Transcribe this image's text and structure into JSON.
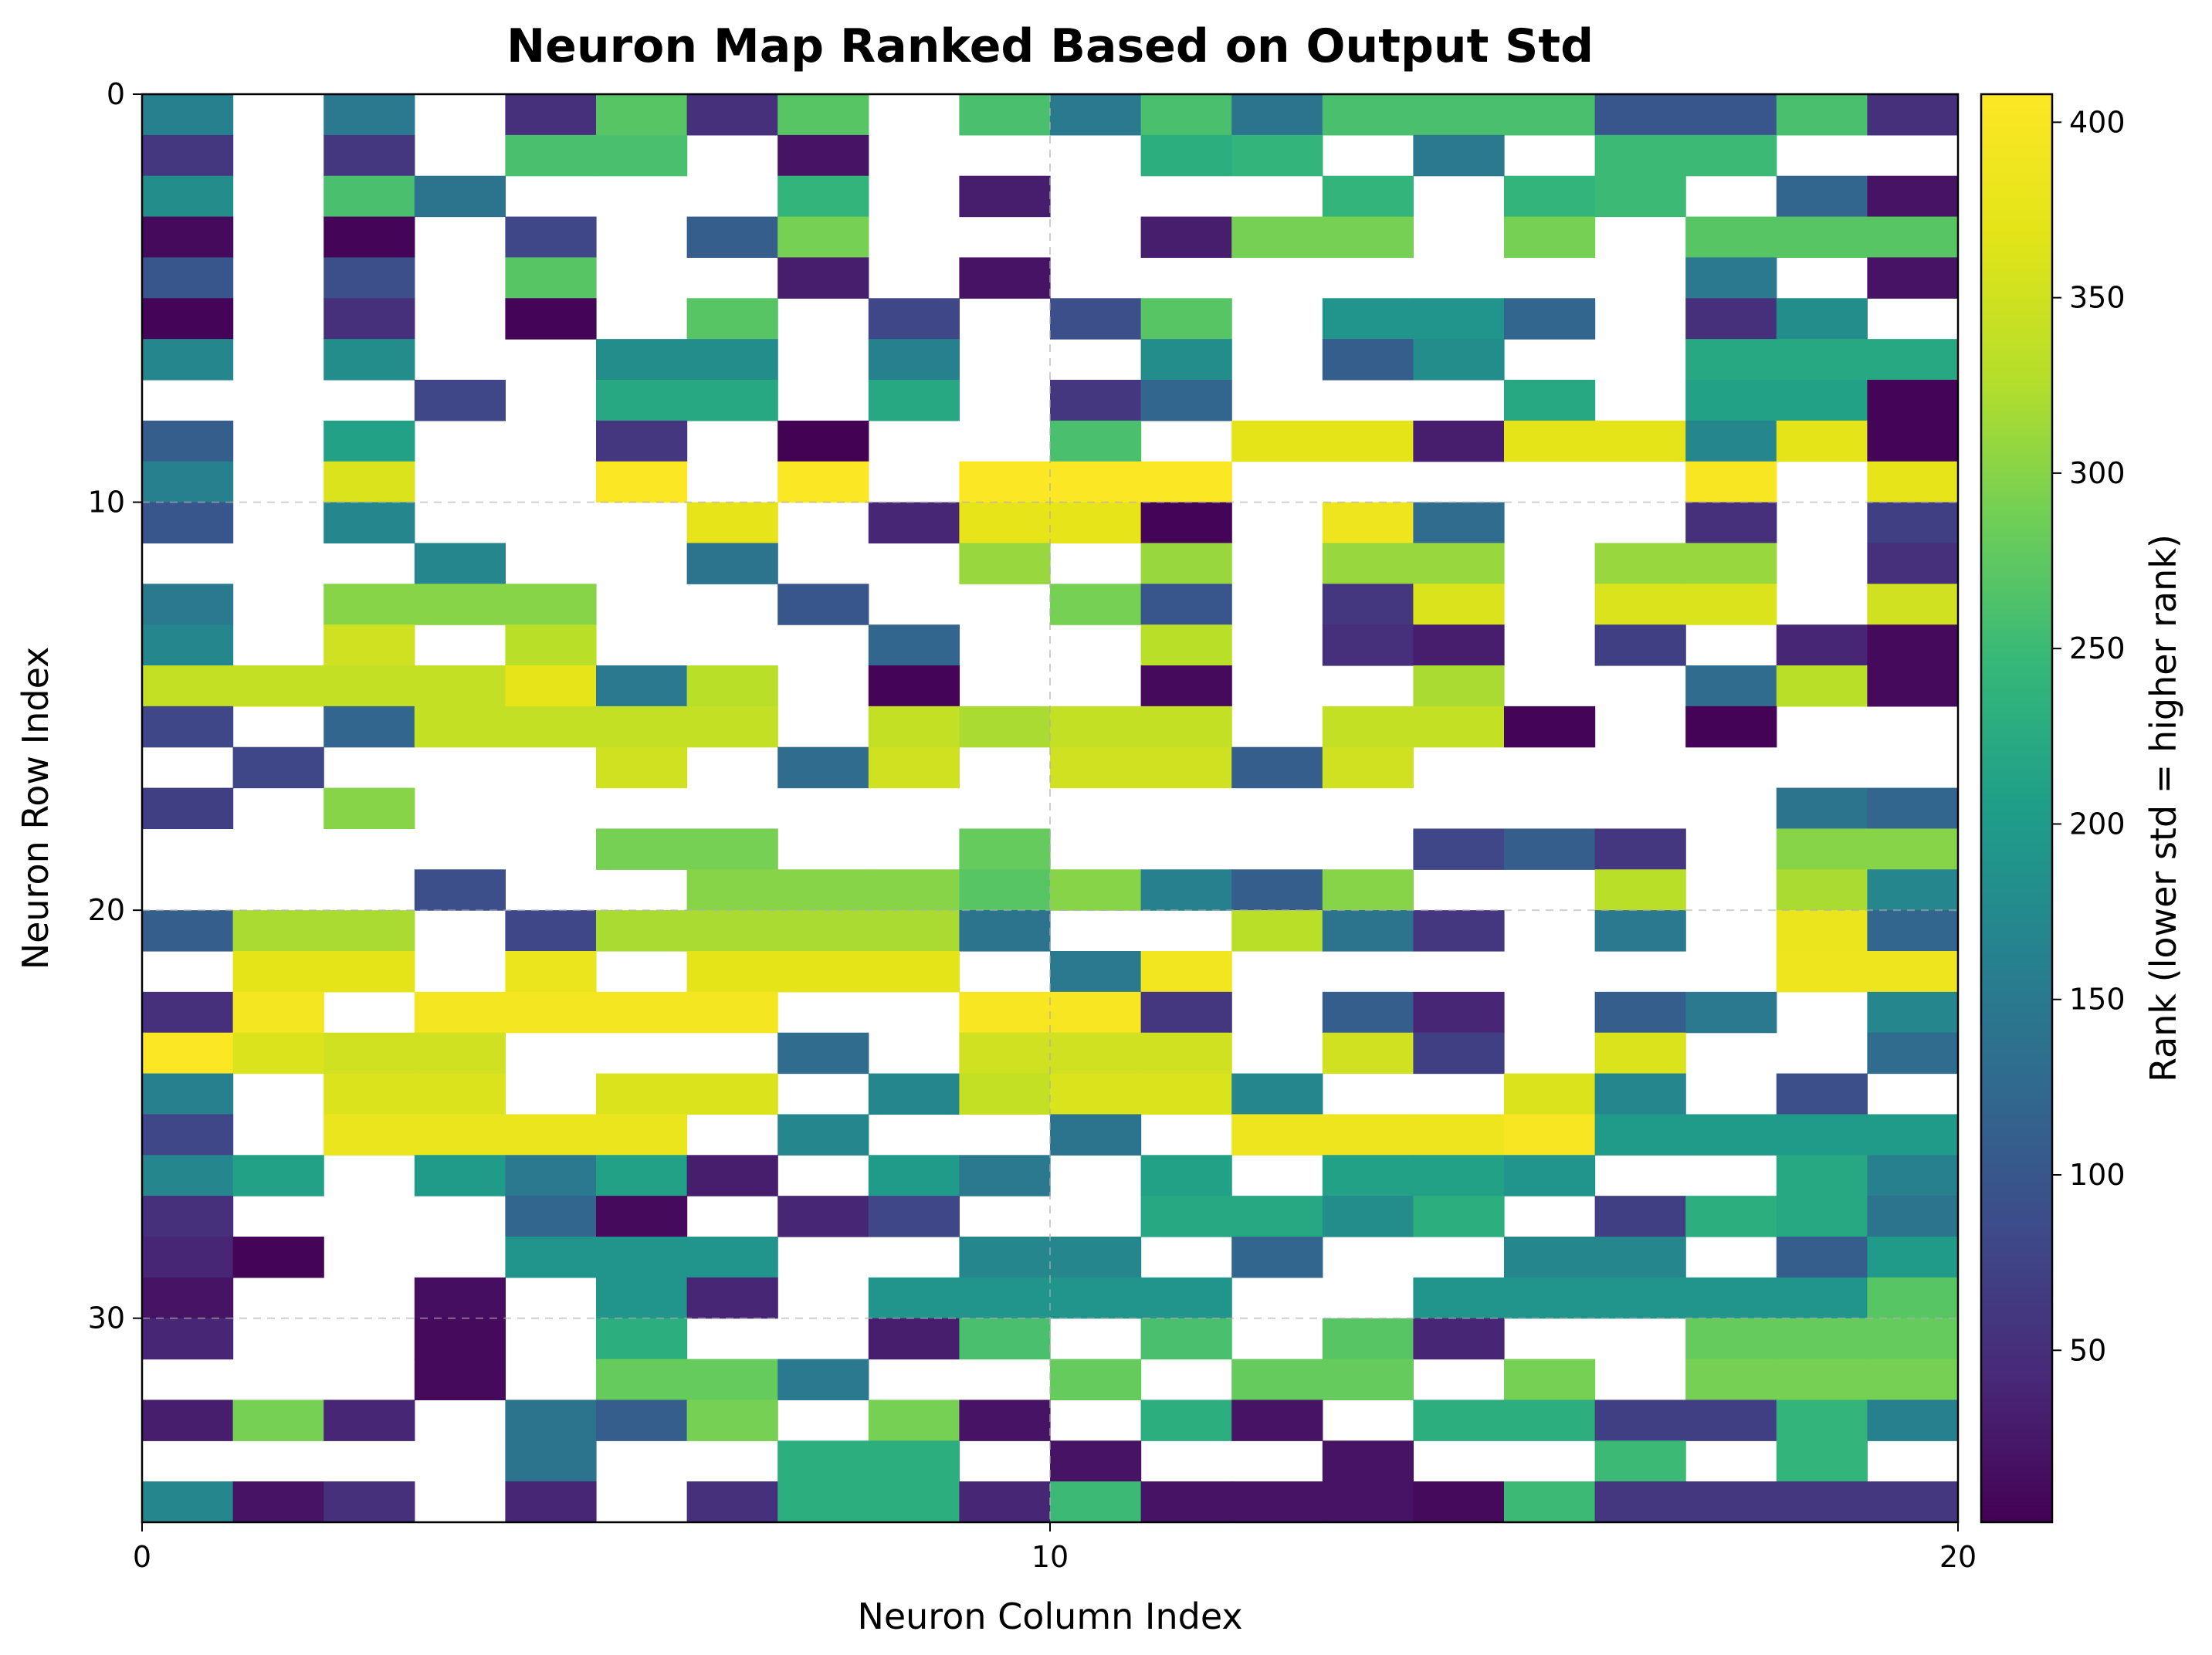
{
  "chart_data": {
    "type": "heatmap",
    "title": "Neuron Map Ranked Based on Output Std",
    "xlabel": "Neuron Column Index",
    "ylabel": "Neuron Row Index",
    "xlim": [
      0,
      20
    ],
    "ylim": [
      35,
      0
    ],
    "xticks": [
      0,
      10,
      20
    ],
    "yticks": [
      0,
      10,
      20,
      30
    ],
    "grid": true,
    "colormap": "viridis",
    "colorbar": {
      "label": "Rank (lower std = higher rank)",
      "min": 1,
      "max": 408,
      "ticks": [
        50,
        100,
        150,
        200,
        250,
        300,
        350,
        400
      ]
    },
    "n_rows": 35,
    "n_cols": 20,
    "rows": [
      [
        160,
        null,
        150,
        null,
        50,
        270,
        50,
        270,
        null,
        260,
        150,
        260,
        140,
        260,
        260,
        260,
        100,
        100,
        260,
        50
      ],
      [
        60,
        null,
        60,
        null,
        260,
        260,
        null,
        20,
        null,
        null,
        null,
        230,
        240,
        null,
        150,
        null,
        250,
        250,
        null,
        null
      ],
      [
        180,
        null,
        260,
        140,
        null,
        null,
        null,
        240,
        null,
        30,
        null,
        null,
        null,
        240,
        null,
        240,
        250,
        null,
        120,
        20
      ],
      [
        10,
        null,
        5,
        null,
        80,
        null,
        110,
        290,
        null,
        null,
        null,
        30,
        290,
        290,
        null,
        290,
        null,
        270,
        270,
        270
      ],
      [
        100,
        null,
        90,
        null,
        270,
        null,
        null,
        30,
        null,
        20,
        null,
        null,
        null,
        null,
        null,
        null,
        null,
        150,
        null,
        20
      ],
      [
        5,
        null,
        50,
        null,
        5,
        null,
        270,
        null,
        80,
        null,
        90,
        270,
        null,
        190,
        190,
        120,
        null,
        50,
        180,
        null
      ],
      [
        170,
        null,
        180,
        null,
        null,
        180,
        180,
        null,
        160,
        null,
        null,
        180,
        null,
        110,
        180,
        null,
        null,
        220,
        220,
        220
      ],
      [
        null,
        null,
        null,
        80,
        null,
        220,
        220,
        null,
        220,
        null,
        60,
        120,
        null,
        null,
        null,
        220,
        null,
        210,
        210,
        5
      ],
      [
        110,
        null,
        210,
        null,
        null,
        60,
        null,
        2,
        null,
        null,
        260,
        null,
        370,
        370,
        30,
        370,
        370,
        170,
        370,
        5
      ],
      [
        160,
        null,
        360,
        null,
        null,
        405,
        null,
        405,
        null,
        405,
        405,
        405,
        null,
        null,
        null,
        null,
        null,
        400,
        null,
        375
      ],
      [
        100,
        null,
        170,
        null,
        null,
        null,
        375,
        null,
        40,
        375,
        375,
        5,
        null,
        385,
        130,
        null,
        null,
        50,
        null,
        70
      ],
      [
        null,
        null,
        null,
        170,
        null,
        null,
        140,
        null,
        null,
        310,
        null,
        310,
        null,
        310,
        310,
        null,
        310,
        310,
        null,
        50
      ],
      [
        150,
        null,
        300,
        300,
        300,
        null,
        null,
        100,
        null,
        null,
        290,
        100,
        null,
        60,
        360,
        null,
        360,
        360,
        null,
        350
      ],
      [
        170,
        null,
        350,
        null,
        330,
        null,
        null,
        null,
        120,
        null,
        null,
        330,
        null,
        50,
        30,
        null,
        70,
        null,
        40,
        10
      ],
      [
        340,
        340,
        340,
        340,
        375,
        150,
        330,
        null,
        5,
        null,
        null,
        10,
        null,
        null,
        320,
        null,
        null,
        130,
        330,
        10
      ],
      [
        80,
        null,
        120,
        340,
        340,
        340,
        340,
        null,
        340,
        320,
        340,
        340,
        null,
        340,
        340,
        5,
        null,
        3,
        null,
        null
      ],
      [
        null,
        80,
        null,
        null,
        null,
        350,
        null,
        130,
        350,
        null,
        350,
        350,
        110,
        350,
        null,
        null,
        null,
        null,
        null,
        null
      ],
      [
        70,
        null,
        300,
        null,
        null,
        null,
        null,
        null,
        null,
        null,
        null,
        null,
        null,
        null,
        null,
        null,
        null,
        null,
        140,
        120
      ],
      [
        null,
        null,
        null,
        null,
        null,
        290,
        290,
        null,
        null,
        280,
        null,
        null,
        null,
        null,
        80,
        110,
        60,
        null,
        300,
        300
      ],
      [
        null,
        null,
        null,
        90,
        null,
        null,
        300,
        300,
        300,
        270,
        300,
        160,
        110,
        300,
        null,
        null,
        330,
        null,
        320,
        170
      ],
      [
        110,
        320,
        320,
        null,
        80,
        320,
        320,
        320,
        320,
        140,
        null,
        null,
        330,
        140,
        60,
        null,
        150,
        null,
        380,
        120
      ],
      [
        null,
        370,
        370,
        null,
        380,
        null,
        370,
        370,
        370,
        null,
        150,
        390,
        null,
        null,
        null,
        null,
        null,
        null,
        385,
        385
      ],
      [
        50,
        395,
        null,
        395,
        395,
        395,
        395,
        null,
        null,
        400,
        400,
        60,
        null,
        110,
        40,
        null,
        110,
        150,
        null,
        170
      ],
      [
        405,
        360,
        350,
        350,
        null,
        null,
        null,
        130,
        null,
        350,
        350,
        350,
        null,
        350,
        70,
        null,
        360,
        null,
        null,
        130
      ],
      [
        160,
        null,
        360,
        360,
        null,
        360,
        360,
        null,
        170,
        340,
        360,
        360,
        170,
        null,
        null,
        360,
        170,
        null,
        90,
        null
      ],
      [
        80,
        null,
        380,
        380,
        380,
        380,
        null,
        170,
        null,
        null,
        140,
        null,
        385,
        385,
        385,
        400,
        200,
        200,
        200,
        200
      ],
      [
        170,
        210,
        null,
        200,
        150,
        210,
        30,
        null,
        200,
        150,
        null,
        210,
        null,
        210,
        210,
        190,
        null,
        null,
        220,
        160
      ],
      [
        50,
        null,
        null,
        null,
        120,
        10,
        null,
        40,
        80,
        null,
        null,
        220,
        220,
        180,
        230,
        null,
        70,
        230,
        220,
        140
      ],
      [
        40,
        5,
        null,
        null,
        190,
        190,
        190,
        null,
        null,
        170,
        170,
        null,
        120,
        null,
        null,
        170,
        170,
        null,
        110,
        200
      ],
      [
        20,
        null,
        null,
        15,
        null,
        190,
        40,
        null,
        190,
        190,
        190,
        190,
        null,
        null,
        190,
        190,
        190,
        190,
        190,
        270
      ],
      [
        40,
        null,
        null,
        10,
        null,
        230,
        null,
        null,
        30,
        260,
        null,
        260,
        null,
        270,
        40,
        null,
        null,
        280,
        280,
        280
      ],
      [
        null,
        null,
        null,
        10,
        null,
        280,
        280,
        150,
        null,
        null,
        280,
        null,
        280,
        280,
        null,
        290,
        null,
        290,
        290,
        290
      ],
      [
        30,
        290,
        40,
        null,
        140,
        110,
        290,
        null,
        290,
        20,
        null,
        230,
        20,
        null,
        230,
        230,
        70,
        70,
        240,
        160
      ],
      [
        null,
        null,
        null,
        null,
        140,
        null,
        null,
        230,
        230,
        null,
        20,
        null,
        null,
        20,
        null,
        null,
        250,
        null,
        240,
        null
      ],
      [
        170,
        20,
        50,
        null,
        40,
        null,
        50,
        230,
        230,
        40,
        250,
        20,
        20,
        20,
        10,
        250,
        60,
        60,
        60,
        60
      ]
    ]
  }
}
